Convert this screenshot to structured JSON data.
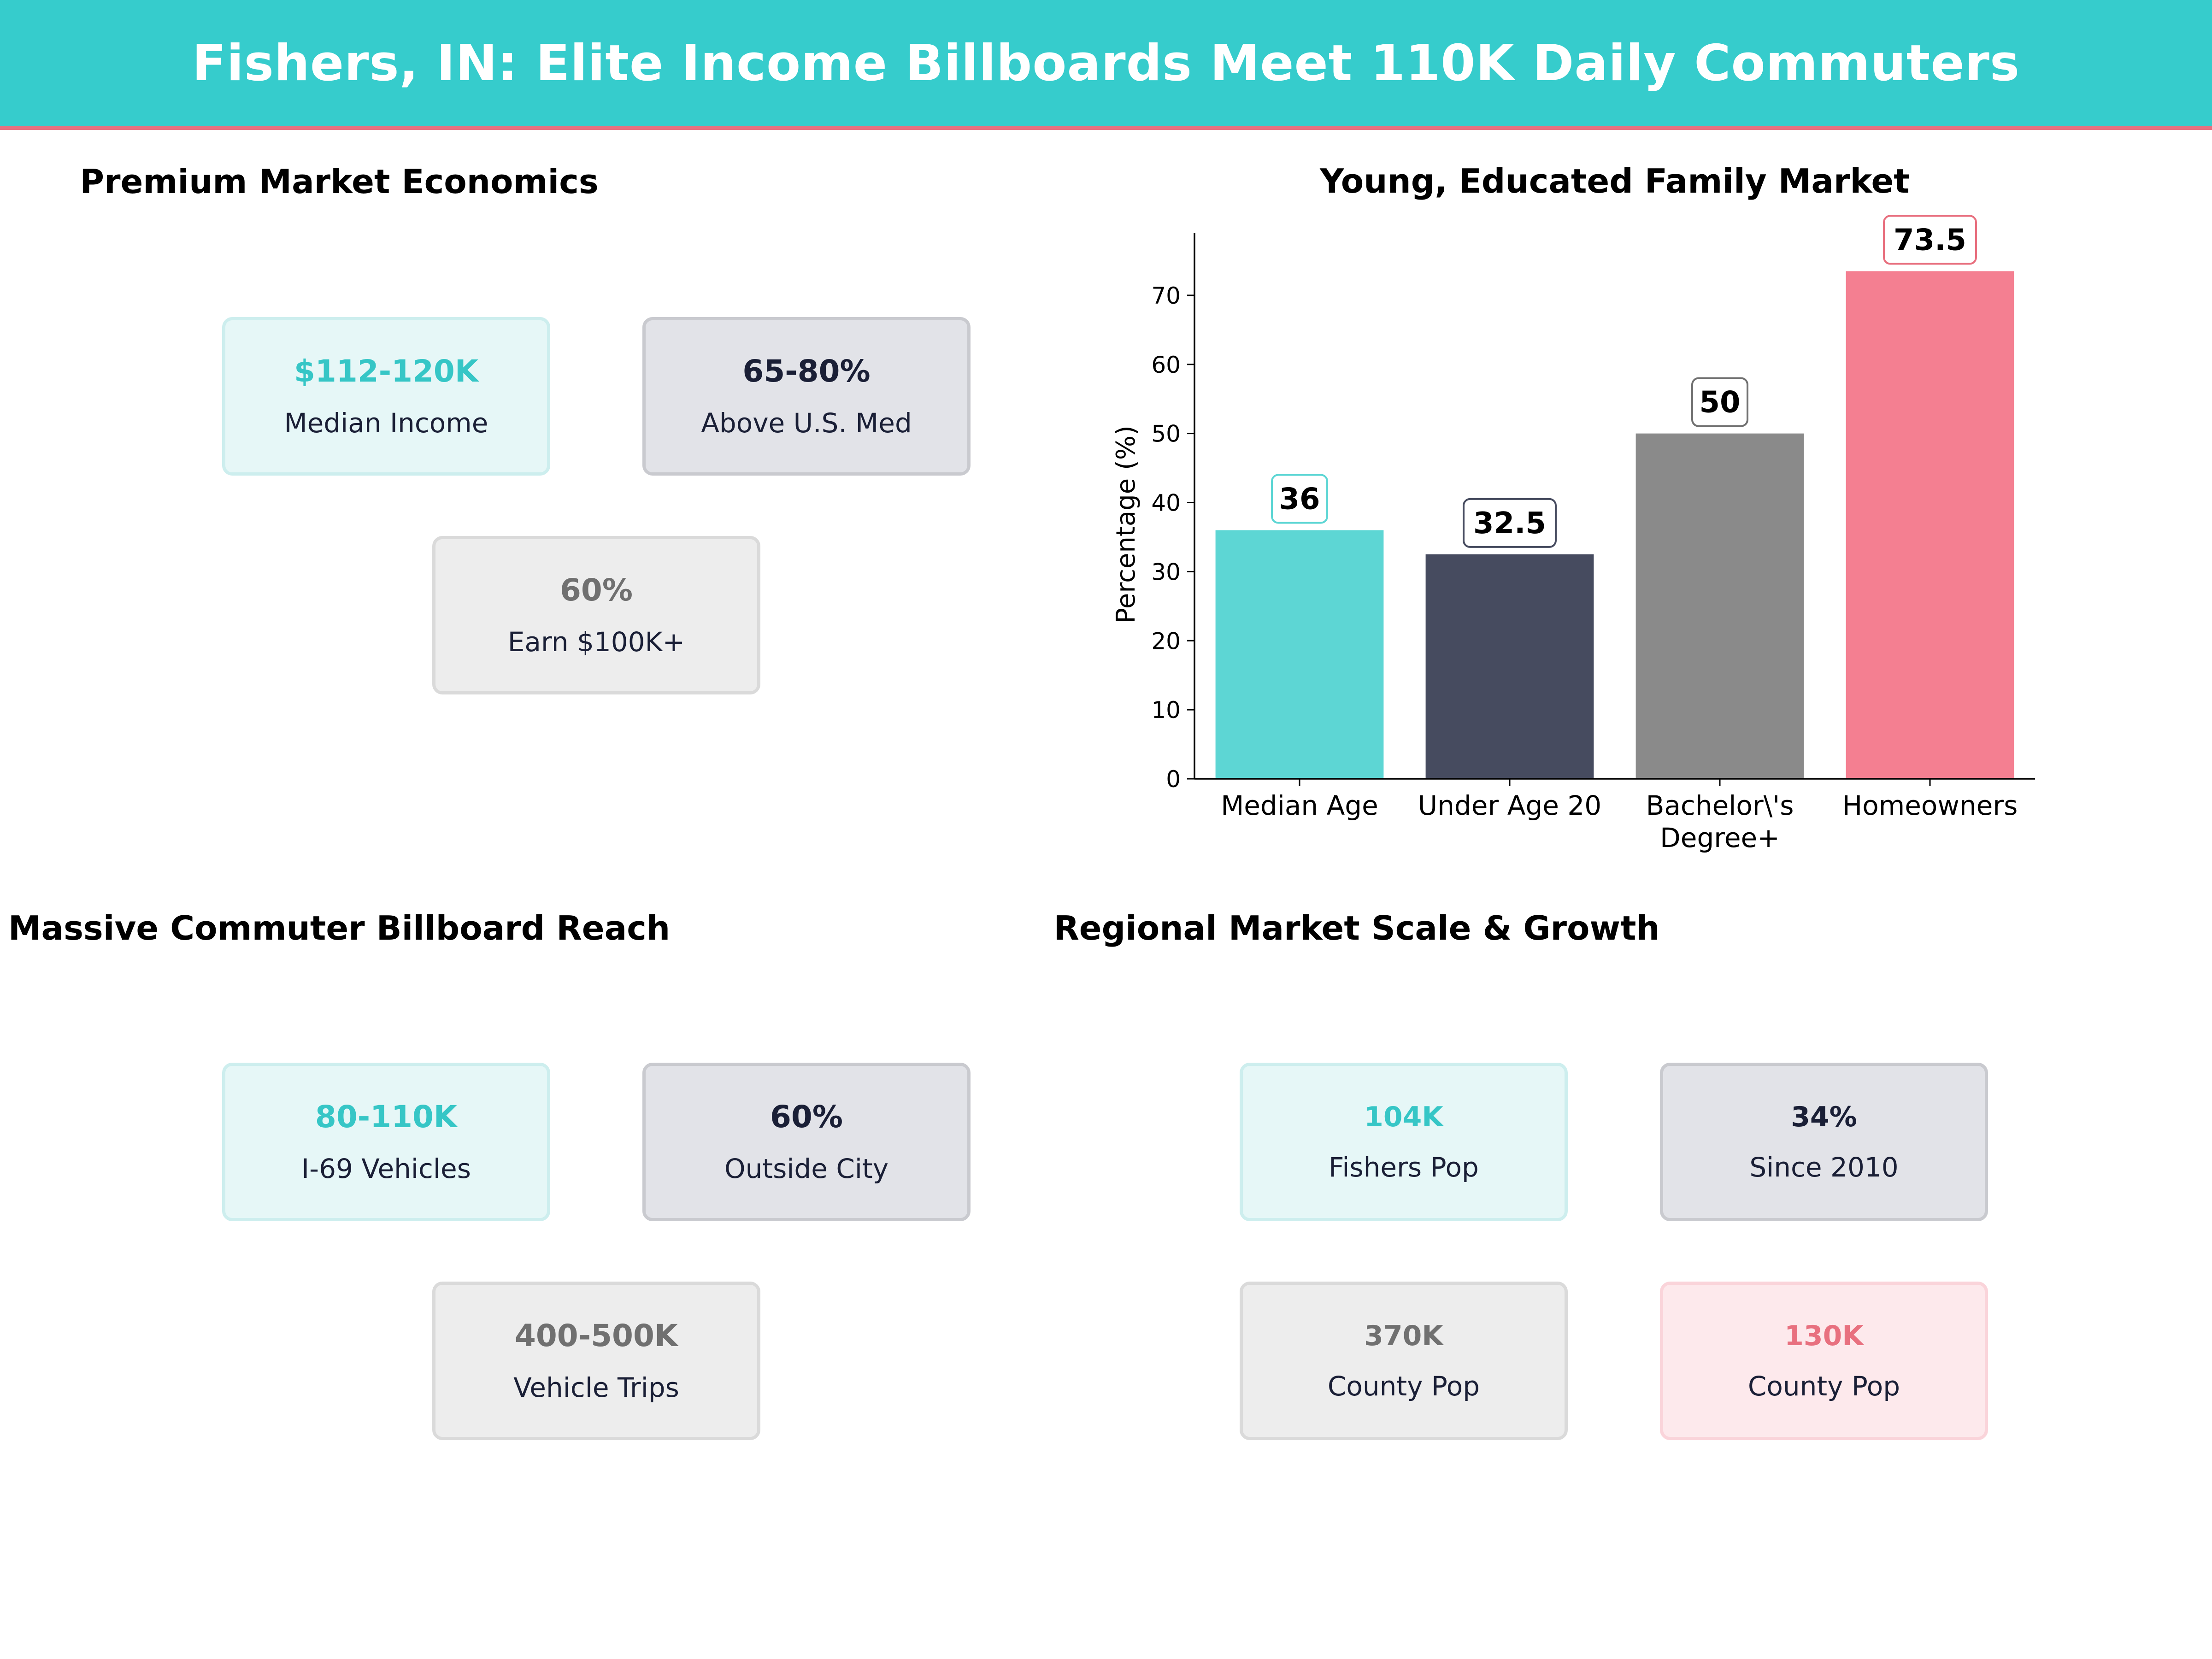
{
  "header": {
    "title": "Fishers, IN: Elite Income Billboards Meet 110K Daily Commuters"
  },
  "panels": {
    "economics": {
      "title": "Premium Market Economics",
      "cards": [
        {
          "value": "$112-120K",
          "label": "Median Income"
        },
        {
          "value": "65-80%",
          "label": "Above U.S. Med"
        },
        {
          "value": "60%",
          "label": "Earn $100K+"
        }
      ]
    },
    "demographics": {
      "title": "Young, Educated Family Market"
    },
    "commuters": {
      "title": "Massive Commuter Billboard Reach",
      "cards": [
        {
          "value": "80-110K",
          "label": "I-69 Vehicles"
        },
        {
          "value": "60%",
          "label": "Outside City"
        },
        {
          "value": "400-500K",
          "label": "Vehicle Trips"
        }
      ]
    },
    "regional": {
      "title": "Regional Market Scale & Growth",
      "cards": [
        {
          "value": "104K",
          "label": "Fishers Pop"
        },
        {
          "value": "34%",
          "label": "Since 2010"
        },
        {
          "value": "370K",
          "label": "County Pop"
        },
        {
          "value": "130K",
          "label": "County Pop"
        }
      ]
    }
  },
  "colors": {
    "banner": "#36cccc",
    "accent_pink": "#e8707f",
    "teal": "#5dd6d4",
    "navy": "#464b5f",
    "grey": "#8a8a8a",
    "pink": "#f47f91"
  },
  "chart_data": {
    "type": "bar",
    "title": "Young, Educated Family Market",
    "categories": [
      "Median Age",
      "Under Age 20",
      "Bachelor\\'s\nDegree+",
      "Homeowners"
    ],
    "values": [
      36,
      32.5,
      50,
      73.5
    ],
    "data_labels": [
      "36",
      "32.5",
      "50",
      "73.5"
    ],
    "bar_colors": [
      "#5dd6d4",
      "#464b5f",
      "#8a8a8a",
      "#f47f91"
    ],
    "label_border_colors": [
      "#5dd6d4",
      "#464b5f",
      "#707070",
      "#e8707f"
    ],
    "xlabel": "",
    "ylabel": "Percentage (%)",
    "ylim": [
      0,
      79
    ],
    "yticks": [
      0,
      10,
      20,
      30,
      40,
      50,
      60,
      70
    ],
    "grid": false,
    "legend": "none"
  }
}
